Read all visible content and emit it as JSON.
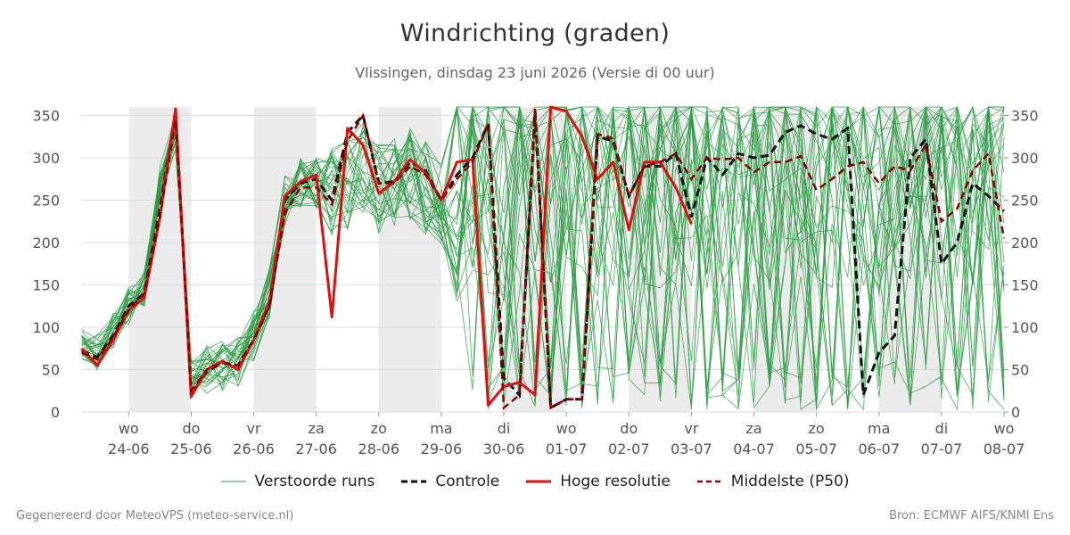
{
  "header": {
    "title": "Windrichting (graden)",
    "subtitle": "Vlissingen, dinsdag 23 juni 2026 (Versie di 00 uur)"
  },
  "legend": {
    "perturbed": "Verstoorde runs",
    "control": "Controle",
    "hires": "Hoge resolutie",
    "median": "Middelste (P50)"
  },
  "footer": {
    "left": "Gegenereerd door MeteoVPS (meteo-service.nl)",
    "right": "Bron: ECMWF AIFS/KNMI Ens"
  },
  "colors": {
    "perturbed": "#2e9c45",
    "control": "#111111",
    "hires": "#dd1111",
    "median": "#8b0000",
    "weekend_band": "#ebebeb",
    "grid": "#dddddd"
  },
  "chart_data": {
    "type": "line",
    "y_unit": "graden",
    "ylim": [
      0,
      360
    ],
    "yticks": [
      0,
      50,
      100,
      150,
      200,
      250,
      300,
      350
    ],
    "x_unit": "days",
    "xlim": [
      -0.76,
      14.0
    ],
    "x_ticks": [
      {
        "x": 0,
        "day": "wo",
        "date": "24-06"
      },
      {
        "x": 1,
        "day": "do",
        "date": "25-06"
      },
      {
        "x": 2,
        "day": "vr",
        "date": "26-06"
      },
      {
        "x": 3,
        "day": "za",
        "date": "27-06"
      },
      {
        "x": 4,
        "day": "zo",
        "date": "28-06"
      },
      {
        "x": 5,
        "day": "ma",
        "date": "29-06"
      },
      {
        "x": 6,
        "day": "di",
        "date": "30-06"
      },
      {
        "x": 7,
        "day": "wo",
        "date": "01-07"
      },
      {
        "x": 8,
        "day": "do",
        "date": "02-07"
      },
      {
        "x": 9,
        "day": "vr",
        "date": "03-07"
      },
      {
        "x": 10,
        "day": "za",
        "date": "04-07"
      },
      {
        "x": 11,
        "day": "zo",
        "date": "05-07"
      },
      {
        "x": 12,
        "day": "ma",
        "date": "06-07"
      },
      {
        "x": 13,
        "day": "di",
        "date": "07-07"
      },
      {
        "x": 14,
        "day": "wo",
        "date": "08-07"
      }
    ],
    "shaded_bands": [
      [
        0,
        1
      ],
      [
        2,
        3
      ],
      [
        4,
        5
      ],
      [
        6,
        7
      ],
      [
        8,
        9
      ],
      [
        10,
        11
      ],
      [
        12,
        13
      ]
    ],
    "grid": true,
    "legend_position": "bottom",
    "series": [
      {
        "name": "Controle",
        "style": "dashed",
        "points": [
          [
            -0.75,
            72
          ],
          [
            -0.5,
            65
          ],
          [
            -0.25,
            90
          ],
          [
            0,
            125
          ],
          [
            0.25,
            140
          ],
          [
            0.5,
            240
          ],
          [
            0.75,
            355
          ],
          [
            1.0,
            20
          ],
          [
            1.25,
            48
          ],
          [
            1.5,
            58
          ],
          [
            1.75,
            55
          ],
          [
            2.0,
            85
          ],
          [
            2.25,
            125
          ],
          [
            2.5,
            250
          ],
          [
            2.75,
            270
          ],
          [
            3.0,
            275
          ],
          [
            3.25,
            250
          ],
          [
            3.5,
            330
          ],
          [
            3.75,
            350
          ],
          [
            4.0,
            270
          ],
          [
            4.25,
            272
          ],
          [
            4.5,
            295
          ],
          [
            4.75,
            285
          ],
          [
            5.0,
            250
          ],
          [
            5.25,
            280
          ],
          [
            5.5,
            300
          ],
          [
            5.75,
            340
          ],
          [
            6.0,
            40
          ],
          [
            6.25,
            20
          ],
          [
            6.5,
            355
          ],
          [
            6.75,
            5
          ],
          [
            7.0,
            15
          ],
          [
            7.25,
            15
          ],
          [
            7.5,
            325
          ],
          [
            7.75,
            320
          ],
          [
            8.0,
            255
          ],
          [
            8.25,
            290
          ],
          [
            8.5,
            290
          ],
          [
            8.75,
            305
          ],
          [
            9.0,
            230
          ],
          [
            9.25,
            300
          ],
          [
            9.5,
            280
          ],
          [
            9.75,
            305
          ],
          [
            10.0,
            300
          ],
          [
            10.25,
            303
          ],
          [
            10.5,
            330
          ],
          [
            10.75,
            338
          ],
          [
            11.0,
            328
          ],
          [
            11.25,
            322
          ],
          [
            11.5,
            335
          ],
          [
            11.75,
            20
          ],
          [
            12.0,
            70
          ],
          [
            12.25,
            90
          ],
          [
            12.5,
            300
          ],
          [
            12.75,
            322
          ],
          [
            13.0,
            175
          ],
          [
            13.25,
            200
          ],
          [
            13.5,
            270
          ],
          [
            13.75,
            255
          ],
          [
            14.0,
            237
          ]
        ]
      },
      {
        "name": "Hoge resolutie",
        "style": "solid",
        "points": [
          [
            -0.75,
            75
          ],
          [
            -0.5,
            55
          ],
          [
            -0.25,
            85
          ],
          [
            0,
            120
          ],
          [
            0.25,
            135
          ],
          [
            0.5,
            230
          ],
          [
            0.75,
            358
          ],
          [
            1.0,
            18
          ],
          [
            1.25,
            50
          ],
          [
            1.5,
            60
          ],
          [
            1.75,
            50
          ],
          [
            2.0,
            85
          ],
          [
            2.25,
            130
          ],
          [
            2.5,
            255
          ],
          [
            2.75,
            272
          ],
          [
            3.0,
            280
          ],
          [
            3.25,
            112
          ],
          [
            3.5,
            335
          ],
          [
            3.75,
            315
          ],
          [
            4.0,
            258
          ],
          [
            4.25,
            272
          ],
          [
            4.5,
            298
          ],
          [
            4.75,
            282
          ],
          [
            5.0,
            250
          ],
          [
            5.25,
            295
          ],
          [
            5.5,
            298
          ],
          [
            5.75,
            8
          ],
          [
            6.0,
            30
          ],
          [
            6.25,
            35
          ],
          [
            6.5,
            20
          ],
          [
            6.75,
            360
          ],
          [
            7.0,
            355
          ],
          [
            7.25,
            325
          ],
          [
            7.5,
            275
          ],
          [
            7.75,
            295
          ],
          [
            8.0,
            215
          ],
          [
            8.25,
            295
          ],
          [
            8.5,
            295
          ],
          [
            8.75,
            265
          ],
          [
            9.0,
            222
          ]
        ]
      },
      {
        "name": "Middelste (P50)",
        "style": "dashed",
        "points": [
          [
            -0.75,
            70
          ],
          [
            -0.5,
            62
          ],
          [
            -0.25,
            88
          ],
          [
            0,
            120
          ],
          [
            0.25,
            140
          ],
          [
            0.5,
            230
          ],
          [
            0.75,
            345
          ],
          [
            1.0,
            25
          ],
          [
            1.25,
            50
          ],
          [
            1.5,
            58
          ],
          [
            1.75,
            55
          ],
          [
            2.0,
            85
          ],
          [
            2.25,
            125
          ],
          [
            2.5,
            235
          ],
          [
            2.75,
            265
          ],
          [
            3.0,
            265
          ],
          [
            3.25,
            245
          ],
          [
            3.5,
            320
          ],
          [
            3.75,
            350
          ],
          [
            4.0,
            270
          ],
          [
            4.25,
            270
          ],
          [
            4.5,
            290
          ],
          [
            4.75,
            280
          ],
          [
            5.0,
            250
          ],
          [
            5.25,
            275
          ],
          [
            5.5,
            295
          ],
          [
            5.75,
            340
          ],
          [
            6.0,
            5
          ],
          [
            6.25,
            20
          ],
          [
            6.5,
            358
          ],
          [
            6.75,
            5
          ],
          [
            7.0,
            15
          ],
          [
            7.25,
            15
          ],
          [
            7.5,
            328
          ],
          [
            7.75,
            323
          ],
          [
            8.0,
            255
          ],
          [
            8.25,
            290
          ],
          [
            8.5,
            295
          ],
          [
            8.75,
            305
          ],
          [
            9.0,
            275
          ],
          [
            9.25,
            300
          ],
          [
            9.5,
            298
          ],
          [
            9.75,
            300
          ],
          [
            10.0,
            283
          ],
          [
            10.25,
            295
          ],
          [
            10.5,
            295
          ],
          [
            10.75,
            302
          ],
          [
            11.0,
            262
          ],
          [
            11.25,
            275
          ],
          [
            11.5,
            290
          ],
          [
            11.75,
            295
          ],
          [
            12.0,
            270
          ],
          [
            12.25,
            290
          ],
          [
            12.5,
            285
          ],
          [
            12.75,
            315
          ],
          [
            13.0,
            225
          ],
          [
            13.25,
            240
          ],
          [
            13.5,
            285
          ],
          [
            13.75,
            305
          ],
          [
            14.0,
            205
          ]
        ]
      },
      {
        "name": "Verstoorde runs",
        "style": "thin",
        "member_count": 30,
        "points": [
          [
            -0.75,
            80
          ],
          [
            -0.5,
            70
          ],
          [
            -0.25,
            95
          ],
          [
            0,
            125
          ],
          [
            0.25,
            145
          ],
          [
            0.5,
            270
          ],
          [
            0.75,
            330
          ],
          [
            1.0,
            40
          ],
          [
            1.25,
            50
          ],
          [
            1.5,
            55
          ],
          [
            1.75,
            60
          ],
          [
            2.0,
            90
          ],
          [
            2.25,
            140
          ],
          [
            2.5,
            250
          ],
          [
            2.75,
            270
          ],
          [
            3.0,
            270
          ],
          [
            3.25,
            260
          ],
          [
            3.5,
            270
          ],
          [
            3.75,
            290
          ],
          [
            4.0,
            265
          ],
          [
            4.25,
            275
          ],
          [
            4.5,
            280
          ],
          [
            4.75,
            265
          ],
          [
            5.0,
            245
          ],
          [
            5.25,
            270
          ],
          [
            5.5,
            290
          ],
          [
            5.75,
            280
          ],
          [
            6.0,
            270
          ],
          [
            6.25,
            280
          ],
          [
            6.5,
            285
          ],
          [
            6.75,
            280
          ],
          [
            7.0,
            275
          ],
          [
            7.25,
            280
          ],
          [
            7.5,
            270
          ],
          [
            7.75,
            275
          ],
          [
            8.0,
            270
          ],
          [
            8.25,
            280
          ],
          [
            8.5,
            285
          ],
          [
            8.75,
            275
          ],
          [
            9.0,
            270
          ],
          [
            9.25,
            280
          ],
          [
            9.5,
            285
          ],
          [
            9.75,
            280
          ],
          [
            10.0,
            275
          ],
          [
            10.25,
            280
          ],
          [
            10.5,
            290
          ],
          [
            10.75,
            285
          ],
          [
            11.0,
            275
          ],
          [
            11.25,
            280
          ],
          [
            11.5,
            285
          ],
          [
            11.75,
            280
          ],
          [
            12.0,
            275
          ],
          [
            12.25,
            280
          ],
          [
            12.5,
            285
          ],
          [
            12.75,
            280
          ],
          [
            13.0,
            270
          ],
          [
            13.25,
            275
          ],
          [
            13.5,
            285
          ],
          [
            13.75,
            280
          ],
          [
            14.0,
            275
          ]
        ]
      }
    ]
  }
}
